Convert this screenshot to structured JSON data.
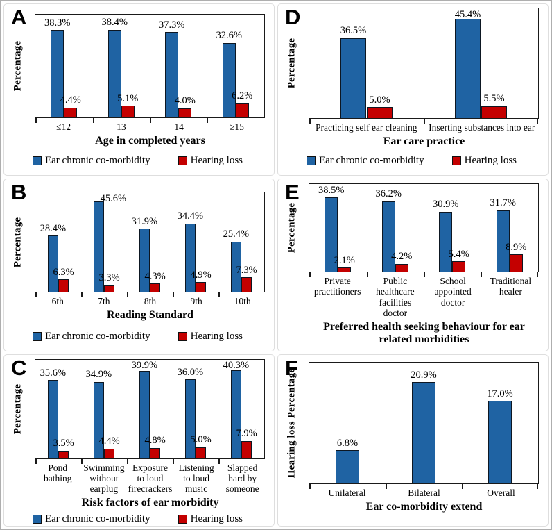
{
  "figure": {
    "panels": [
      "A",
      "B",
      "C",
      "D",
      "E",
      "F"
    ],
    "legend_labels": [
      "Ear chronic co-morbidity",
      "Hearing loss"
    ]
  },
  "colors": {
    "series_blue": "#1F63A3",
    "series_red": "#C40000",
    "bar_border": "#0D1722",
    "axis": "#1A1A1A"
  },
  "chart_data": [
    {
      "panel": "A",
      "type": "bar",
      "xlabel": "Age in completed years",
      "ylabel": "Percentage",
      "ylim": [
        0,
        45
      ],
      "grid": false,
      "legend": true,
      "legend_position": "bottom",
      "categories": [
        "≤12",
        "13",
        "14",
        "≥15"
      ],
      "series": [
        {
          "name": "Ear chronic co-morbidity",
          "color": "#1F63A3",
          "values": [
            38.3,
            38.4,
            37.3,
            32.6
          ]
        },
        {
          "name": "Hearing loss",
          "color": "#C40000",
          "values": [
            4.4,
            5.1,
            4.0,
            6.2
          ]
        }
      ]
    },
    {
      "panel": "B",
      "type": "bar",
      "xlabel": "Reading Standard",
      "ylabel": "Percentage",
      "ylim": [
        0,
        50
      ],
      "grid": false,
      "legend": true,
      "legend_position": "bottom",
      "label_dx": {
        "0_1": 21
      },
      "categories": [
        "6th",
        "7th",
        "8th",
        "9th",
        "10th"
      ],
      "series": [
        {
          "name": "Ear chronic co-morbidity",
          "color": "#1F63A3",
          "values": [
            28.4,
            45.6,
            31.9,
            34.4,
            25.4
          ]
        },
        {
          "name": "Hearing loss",
          "color": "#C40000",
          "values": [
            6.3,
            3.3,
            4.3,
            4.9,
            7.3
          ]
        }
      ]
    },
    {
      "panel": "C",
      "type": "bar",
      "xlabel": "Risk factors of ear morbidity",
      "ylabel": "Percentage",
      "ylim": [
        0,
        45
      ],
      "grid": false,
      "legend": true,
      "legend_position": "bottom",
      "categories": [
        "Pond bathing",
        "Swimming without earplug",
        "Exposure to loud firecrackers",
        "Listening to loud music",
        "Slapped hard by someone"
      ],
      "series": [
        {
          "name": "Ear chronic co-morbidity",
          "color": "#1F63A3",
          "values": [
            35.6,
            34.9,
            39.9,
            36.0,
            40.3
          ]
        },
        {
          "name": "Hearing loss",
          "color": "#C40000",
          "values": [
            3.5,
            4.4,
            4.8,
            5.0,
            7.9
          ]
        }
      ]
    },
    {
      "panel": "D",
      "type": "bar",
      "xlabel": "Ear care practice",
      "ylabel": "Percentage",
      "ylim": [
        0,
        50
      ],
      "grid": false,
      "legend": true,
      "legend_position": "bottom",
      "categories": [
        "Practicing self ear cleaning",
        "Inserting substances into ear"
      ],
      "series": [
        {
          "name": "Ear chronic co-morbidity",
          "color": "#1F63A3",
          "values": [
            36.5,
            45.4
          ]
        },
        {
          "name": "Hearing loss",
          "color": "#C40000",
          "values": [
            5.0,
            5.5
          ]
        }
      ]
    },
    {
      "panel": "E",
      "type": "bar",
      "xlabel": "Preferred health seeking behaviour for ear related morbidities",
      "ylabel": "Percentage",
      "ylim": [
        0,
        45
      ],
      "grid": false,
      "legend": true,
      "legend_position": "bottom",
      "categories": [
        "Private practitioners",
        "Public healthcare facilities doctor",
        "School appointed doctor",
        "Traditional healer"
      ],
      "series": [
        {
          "name": "Ear chronic co-morbidity",
          "color": "#1F63A3",
          "values": [
            38.5,
            36.2,
            30.9,
            31.7
          ]
        },
        {
          "name": "Hearing loss",
          "color": "#C40000",
          "values": [
            2.1,
            4.2,
            5.4,
            8.9
          ]
        }
      ]
    },
    {
      "panel": "F",
      "type": "bar",
      "xlabel": "Ear co-morbidity extend",
      "ylabel": "Hearing loss Percentage",
      "ylim": [
        0,
        25
      ],
      "grid": false,
      "legend": false,
      "categories": [
        "Unilateral",
        "Bilateral",
        "Overall"
      ],
      "series": [
        {
          "name": "Hearing loss",
          "color": "#1F63A3",
          "values": [
            6.8,
            20.9,
            17.0
          ]
        }
      ]
    }
  ]
}
